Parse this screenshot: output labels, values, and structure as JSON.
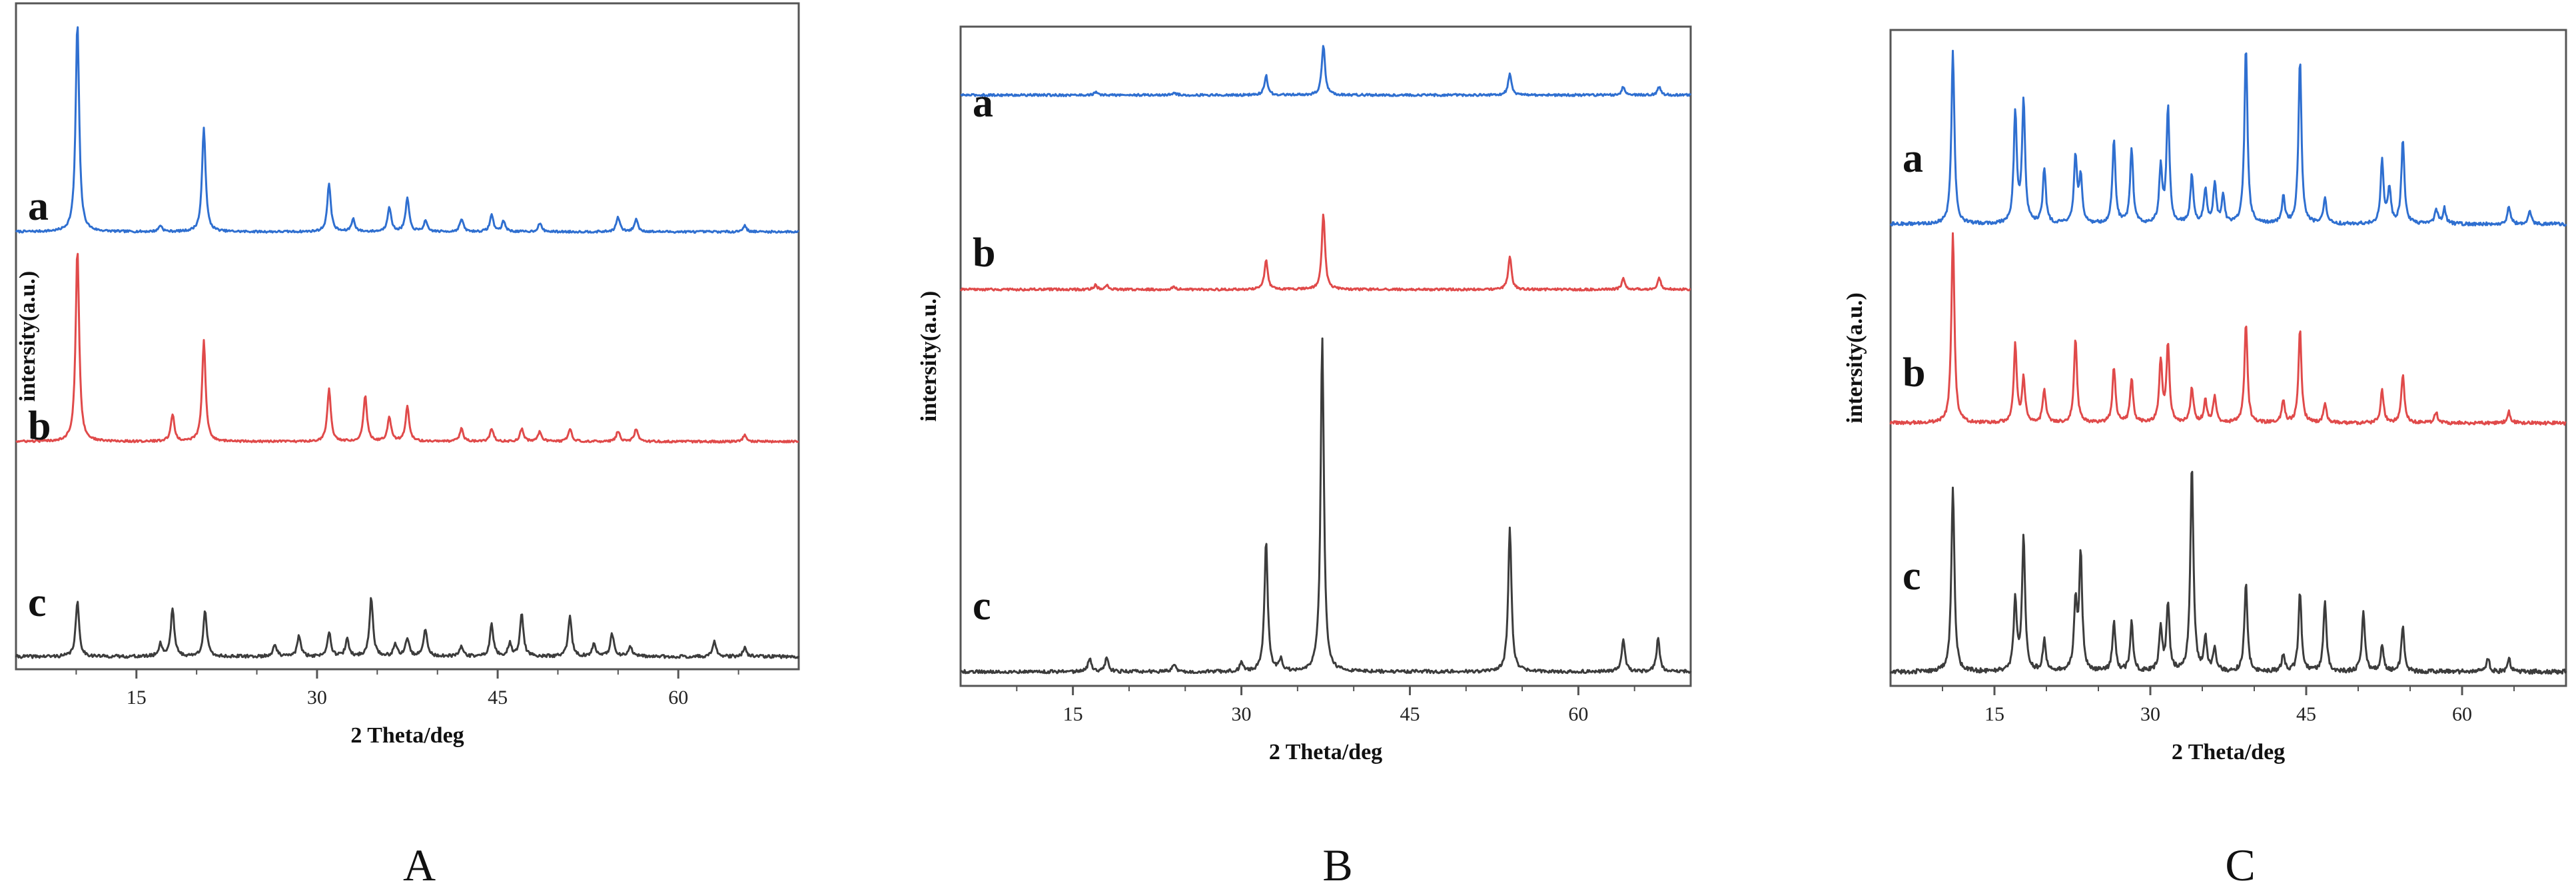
{
  "colors": {
    "a": "#2f6fd0",
    "b": "#e04a4a",
    "c": "#3c3c3c",
    "frame": "#555555"
  },
  "chart_data": [
    {
      "type": "line",
      "panel_label": "A",
      "xlabel": "2 Theta/deg",
      "ylabel": "intersity(a.u.)",
      "xlim": [
        5,
        70
      ],
      "xticks": [
        15,
        30,
        45,
        60
      ],
      "x_tick_labels": [
        "15",
        "30",
        "45",
        "60"
      ],
      "grid": false,
      "series": [
        {
          "name": "a",
          "offset": 2.05,
          "baseline": 0.01,
          "peaks": [
            [
              10.1,
              1.0
            ],
            [
              20.6,
              0.5
            ],
            [
              17.0,
              0.03
            ],
            [
              31.0,
              0.23
            ],
            [
              33.0,
              0.06
            ],
            [
              36.0,
              0.12
            ],
            [
              37.5,
              0.16
            ],
            [
              39.0,
              0.05
            ],
            [
              42.0,
              0.06
            ],
            [
              44.5,
              0.08
            ],
            [
              45.5,
              0.05
            ],
            [
              48.5,
              0.04
            ],
            [
              55.0,
              0.07
            ],
            [
              56.5,
              0.06
            ],
            [
              65.5,
              0.03
            ]
          ]
        },
        {
          "name": "b",
          "offset": 1.05,
          "baseline": 0.01,
          "peaks": [
            [
              10.1,
              0.92
            ],
            [
              20.6,
              0.48
            ],
            [
              18.0,
              0.13
            ],
            [
              31.0,
              0.25
            ],
            [
              34.0,
              0.22
            ],
            [
              36.0,
              0.12
            ],
            [
              37.5,
              0.17
            ],
            [
              42.0,
              0.06
            ],
            [
              44.5,
              0.06
            ],
            [
              47.0,
              0.06
            ],
            [
              48.5,
              0.05
            ],
            [
              51.0,
              0.06
            ],
            [
              55.0,
              0.05
            ],
            [
              56.5,
              0.06
            ],
            [
              65.5,
              0.03
            ]
          ]
        },
        {
          "name": "c",
          "offset": 0.02,
          "baseline": 0.015,
          "peaks": [
            [
              10.1,
              0.26
            ],
            [
              18.0,
              0.23
            ],
            [
              20.7,
              0.22
            ],
            [
              17.0,
              0.06
            ],
            [
              26.5,
              0.06
            ],
            [
              28.5,
              0.1
            ],
            [
              31.0,
              0.12
            ],
            [
              32.5,
              0.08
            ],
            [
              34.5,
              0.28
            ],
            [
              36.5,
              0.06
            ],
            [
              37.5,
              0.09
            ],
            [
              39.0,
              0.13
            ],
            [
              42.0,
              0.05
            ],
            [
              44.5,
              0.15
            ],
            [
              46.0,
              0.06
            ],
            [
              47.0,
              0.2
            ],
            [
              51.0,
              0.19
            ],
            [
              53.0,
              0.06
            ],
            [
              54.5,
              0.11
            ],
            [
              56.0,
              0.05
            ],
            [
              63.0,
              0.07
            ],
            [
              65.5,
              0.04
            ]
          ]
        }
      ]
    },
    {
      "type": "line",
      "panel_label": "B",
      "xlabel": "2 Theta/deg",
      "ylabel": "intersity(a.u.)",
      "xlim": [
        5,
        70
      ],
      "xticks": [
        15,
        30,
        45,
        60
      ],
      "x_tick_labels": [
        "15",
        "30",
        "45",
        "60"
      ],
      "grid": false,
      "series": [
        {
          "name": "a",
          "offset": 2.1,
          "baseline": 0.008,
          "peaks": [
            [
              32.2,
              0.07
            ],
            [
              37.3,
              0.18
            ],
            [
              53.9,
              0.08
            ],
            [
              64.0,
              0.03
            ],
            [
              67.2,
              0.03
            ],
            [
              17.0,
              0.01
            ],
            [
              24.0,
              0.01
            ]
          ]
        },
        {
          "name": "b",
          "offset": 1.4,
          "baseline": 0.008,
          "peaks": [
            [
              32.2,
              0.11
            ],
            [
              37.3,
              0.27
            ],
            [
              53.9,
              0.12
            ],
            [
              64.0,
              0.04
            ],
            [
              67.2,
              0.04
            ],
            [
              17.0,
              0.015
            ],
            [
              18.0,
              0.015
            ],
            [
              24.0,
              0.01
            ]
          ]
        },
        {
          "name": "c",
          "offset": 0.02,
          "baseline": 0.012,
          "peaks": [
            [
              32.2,
              0.47
            ],
            [
              37.2,
              1.2
            ],
            [
              53.9,
              0.52
            ],
            [
              64.0,
              0.12
            ],
            [
              67.1,
              0.12
            ],
            [
              16.5,
              0.05
            ],
            [
              18.0,
              0.05
            ],
            [
              24.0,
              0.03
            ],
            [
              30.0,
              0.03
            ],
            [
              33.5,
              0.04
            ]
          ]
        }
      ]
    },
    {
      "type": "line",
      "panel_label": "C",
      "xlabel": "2 Theta/deg",
      "ylabel": "intersity(a.u.)",
      "xlim": [
        5,
        70
      ],
      "xticks": [
        15,
        30,
        45,
        60
      ],
      "x_tick_labels": [
        "15",
        "30",
        "45",
        "60"
      ],
      "grid": false,
      "series": [
        {
          "name": "a",
          "offset": 2.05,
          "baseline": 0.015,
          "peaks": [
            [
              11.0,
              0.78
            ],
            [
              17.0,
              0.5
            ],
            [
              17.8,
              0.55
            ],
            [
              19.8,
              0.25
            ],
            [
              22.8,
              0.3
            ],
            [
              23.3,
              0.2
            ],
            [
              26.5,
              0.38
            ],
            [
              28.2,
              0.34
            ],
            [
              31.0,
              0.25
            ],
            [
              31.7,
              0.52
            ],
            [
              34.0,
              0.22
            ],
            [
              35.3,
              0.15
            ],
            [
              36.2,
              0.18
            ],
            [
              37.0,
              0.12
            ],
            [
              39.2,
              0.8
            ],
            [
              42.8,
              0.12
            ],
            [
              44.4,
              0.74
            ],
            [
              46.8,
              0.12
            ],
            [
              52.3,
              0.28
            ],
            [
              53.0,
              0.16
            ],
            [
              54.3,
              0.38
            ],
            [
              57.5,
              0.07
            ],
            [
              58.3,
              0.07
            ],
            [
              64.5,
              0.08
            ],
            [
              66.5,
              0.06
            ]
          ]
        },
        {
          "name": "b",
          "offset": 1.15,
          "baseline": 0.015,
          "peaks": [
            [
              11.0,
              0.86
            ],
            [
              17.0,
              0.35
            ],
            [
              17.8,
              0.2
            ],
            [
              19.8,
              0.15
            ],
            [
              22.8,
              0.38
            ],
            [
              26.5,
              0.25
            ],
            [
              28.2,
              0.2
            ],
            [
              31.0,
              0.28
            ],
            [
              31.7,
              0.35
            ],
            [
              34.0,
              0.16
            ],
            [
              35.3,
              0.1
            ],
            [
              36.2,
              0.12
            ],
            [
              39.2,
              0.45
            ],
            [
              42.8,
              0.1
            ],
            [
              44.4,
              0.42
            ],
            [
              46.8,
              0.09
            ],
            [
              52.3,
              0.15
            ],
            [
              54.3,
              0.22
            ],
            [
              57.5,
              0.05
            ],
            [
              64.5,
              0.05
            ]
          ]
        },
        {
          "name": "c",
          "offset": 0.02,
          "baseline": 0.02,
          "peaks": [
            [
              11.0,
              0.84
            ],
            [
              17.0,
              0.32
            ],
            [
              17.8,
              0.6
            ],
            [
              19.8,
              0.14
            ],
            [
              22.8,
              0.3
            ],
            [
              23.3,
              0.52
            ],
            [
              26.5,
              0.22
            ],
            [
              28.2,
              0.22
            ],
            [
              31.0,
              0.2
            ],
            [
              31.7,
              0.3
            ],
            [
              34.0,
              0.94
            ],
            [
              35.3,
              0.15
            ],
            [
              36.2,
              0.1
            ],
            [
              39.2,
              0.4
            ],
            [
              42.8,
              0.08
            ],
            [
              44.4,
              0.36
            ],
            [
              46.8,
              0.32
            ],
            [
              50.5,
              0.27
            ],
            [
              52.3,
              0.12
            ],
            [
              54.3,
              0.2
            ],
            [
              62.5,
              0.06
            ],
            [
              64.5,
              0.06
            ]
          ]
        }
      ]
    }
  ]
}
